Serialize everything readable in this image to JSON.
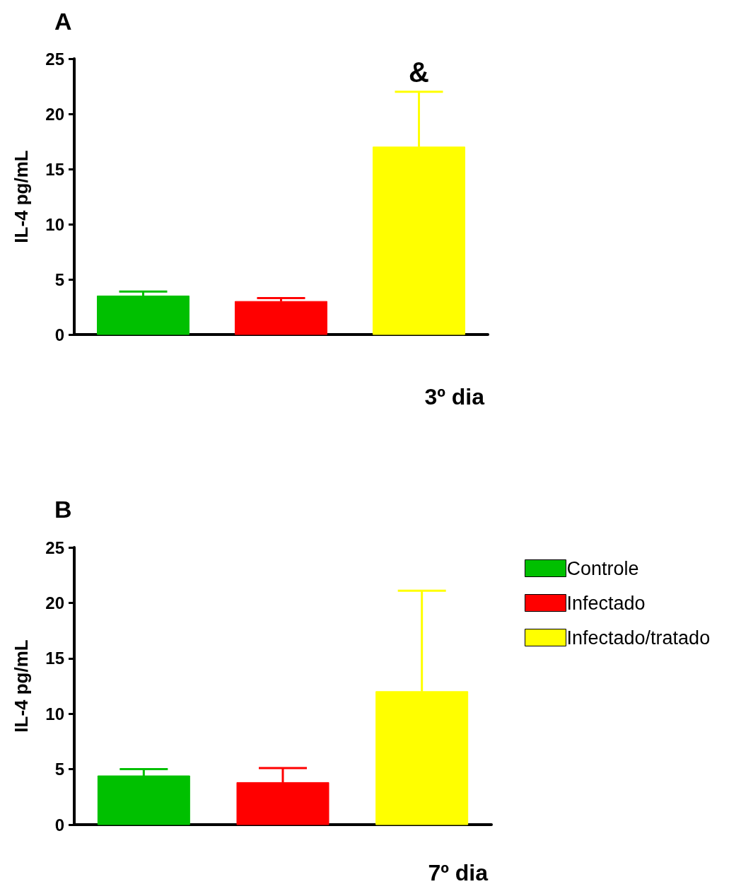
{
  "chart_data": [
    {
      "type": "bar",
      "title": "A",
      "xlabel": "3º dia",
      "ylabel": "IL-4 pg/mL",
      "categories": [
        null,
        null,
        null
      ],
      "series": [
        {
          "color": "#00c000",
          "values": [
            3.5,
            null,
            null
          ],
          "errors": [
            [
              3.5,
              3.9
            ],
            null,
            null
          ]
        },
        {
          "color": "#ff0000",
          "values": [
            null,
            3.0,
            null
          ],
          "errors": [
            null,
            [
              3.0,
              3.3
            ],
            null
          ]
        },
        {
          "color": "#ffff00",
          "values": [
            null,
            null,
            17
          ],
          "errors": [
            null,
            null,
            [
              17,
              22
            ]
          ]
        }
      ],
      "ylim": [
        0,
        25
      ],
      "yticks": [
        0,
        5,
        10,
        15,
        20,
        25
      ],
      "annotations": [
        "&"
      ],
      "legend": false,
      "grid": false
    },
    {
      "type": "bar",
      "title": "B",
      "xlabel": "7º dia",
      "ylabel": "IL-4 pg/mL",
      "categories": [
        null,
        null,
        null
      ],
      "series": [
        {
          "name": "Controle",
          "color": "#00c000",
          "values": [
            4.4,
            null,
            null
          ],
          "errors": [
            [
              4.4,
              5.0
            ],
            null,
            null
          ]
        },
        {
          "name": "Infectado",
          "color": "#ff0000",
          "values": [
            null,
            3.8,
            null
          ],
          "errors": [
            null,
            [
              3.8,
              5.1
            ],
            null
          ]
        },
        {
          "name": "Infectado/tratado",
          "color": "#ffff00",
          "values": [
            null,
            null,
            12
          ],
          "errors": [
            null,
            null,
            [
              12,
              21.1
            ]
          ]
        }
      ],
      "ylim": [
        0,
        25
      ],
      "yticks": [
        0,
        5,
        10,
        15,
        20,
        25
      ],
      "legend": "right",
      "grid": false
    }
  ]
}
